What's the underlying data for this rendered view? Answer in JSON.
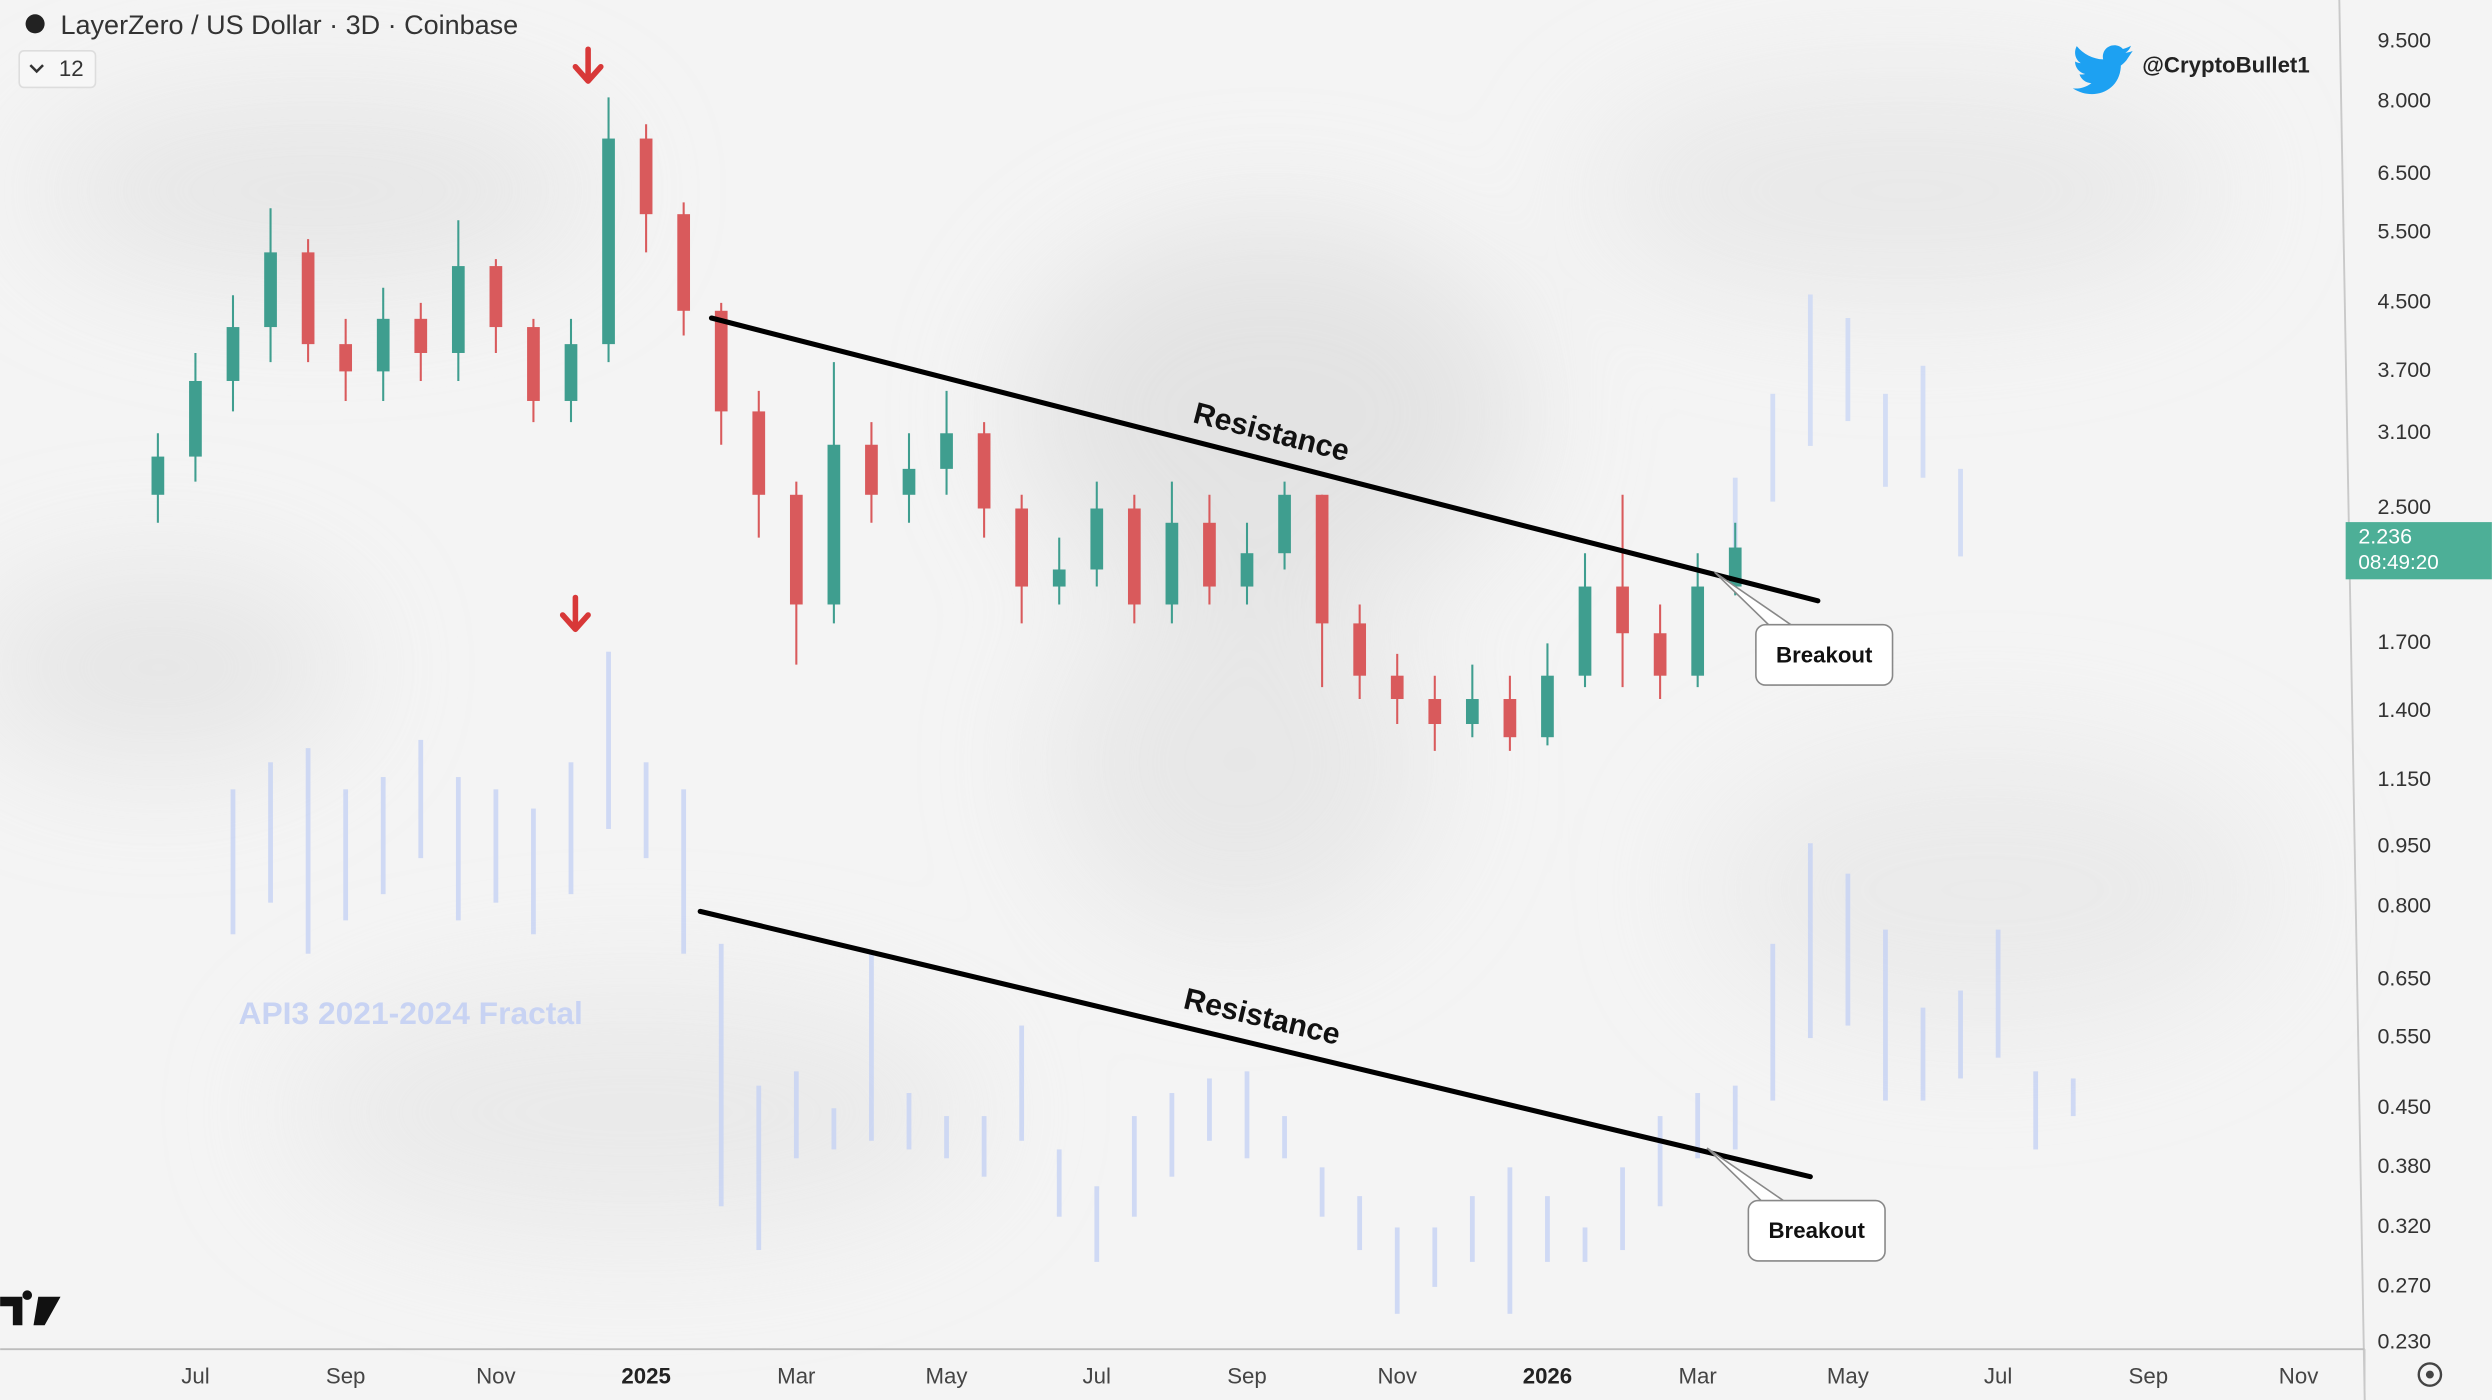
{
  "chart_data": {
    "type": "candlestick",
    "title": "LayerZero / US Dollar · 3D · Coinbase",
    "indicator_count": 12,
    "author": "@CryptoBullet1",
    "log_scale": true,
    "up_color": "#3f9e8f",
    "down_color": "#d95a5c",
    "x": [
      -6.5,
      -6.0,
      -5.5,
      -5.0,
      -4.5,
      -4.0,
      -3.5,
      -3.0,
      -2.5,
      -2.0,
      -1.5,
      -1.0,
      -0.5,
      0.0,
      0.5,
      1.0,
      1.5,
      2.0,
      2.5,
      3.0,
      3.5,
      4.0,
      4.5,
      5.0,
      5.5,
      6.0,
      6.5,
      7.0,
      7.5,
      8.0,
      8.5,
      9.0,
      9.5,
      10.0,
      10.5,
      11.0,
      11.5,
      12.0,
      12.5,
      13.0,
      13.5,
      14.0,
      14.5
    ],
    "open": [
      2.6,
      2.9,
      3.6,
      4.2,
      5.2,
      4.0,
      3.7,
      4.3,
      3.9,
      5.0,
      4.2,
      3.4,
      4.0,
      7.2,
      5.8,
      4.4,
      3.3,
      2.6,
      1.9,
      3.0,
      2.6,
      2.8,
      3.1,
      2.5,
      2.0,
      2.1,
      2.5,
      1.9,
      2.4,
      2.0,
      2.2,
      2.6,
      1.8,
      1.55,
      1.45,
      1.35,
      1.45,
      1.3,
      1.55,
      2.0,
      1.75,
      1.55,
      2.0
    ],
    "high": [
      3.1,
      3.9,
      4.6,
      5.9,
      5.4,
      4.3,
      4.7,
      4.5,
      5.7,
      5.1,
      4.3,
      4.3,
      8.1,
      7.5,
      6.0,
      4.5,
      3.5,
      2.7,
      3.8,
      3.2,
      3.1,
      3.5,
      3.2,
      2.6,
      2.3,
      2.7,
      2.6,
      2.7,
      2.6,
      2.4,
      2.7,
      2.6,
      1.9,
      1.65,
      1.55,
      1.6,
      1.55,
      1.7,
      2.2,
      2.6,
      1.9,
      2.2,
      2.4
    ],
    "low": [
      2.4,
      2.7,
      3.3,
      3.8,
      3.8,
      3.4,
      3.4,
      3.6,
      3.6,
      3.9,
      3.2,
      3.2,
      3.8,
      5.2,
      4.1,
      3.0,
      2.3,
      1.6,
      1.8,
      2.4,
      2.4,
      2.6,
      2.3,
      1.8,
      1.9,
      2.0,
      1.8,
      1.8,
      1.9,
      1.9,
      2.1,
      1.5,
      1.45,
      1.35,
      1.25,
      1.3,
      1.25,
      1.27,
      1.5,
      1.5,
      1.45,
      1.5,
      1.95
    ],
    "close": [
      2.9,
      3.6,
      4.2,
      5.2,
      4.0,
      3.7,
      4.3,
      3.9,
      5.0,
      4.2,
      3.4,
      4.0,
      7.2,
      5.8,
      4.4,
      3.3,
      2.6,
      1.9,
      3.0,
      2.6,
      2.8,
      3.1,
      2.5,
      2.0,
      2.1,
      2.5,
      1.9,
      2.4,
      2.0,
      2.2,
      2.6,
      1.8,
      1.55,
      1.45,
      1.35,
      1.45,
      1.3,
      1.55,
      2.0,
      1.75,
      1.55,
      2.0,
      2.236
    ],
    "fractal": {
      "label": "API3 2021-2024 Fractal",
      "color": "#c8d3f3",
      "x": [
        -5.5,
        -5.0,
        -4.5,
        -4.0,
        -3.5,
        -3.0,
        -2.5,
        -2.0,
        -1.5,
        -1.0,
        -0.5,
        0.0,
        0.5,
        1.0,
        1.5,
        2.0,
        2.5,
        3.0,
        3.5,
        4.0,
        4.5,
        5.0,
        5.5,
        6.0,
        6.5,
        7.0,
        7.5,
        8.0,
        8.5,
        9.0,
        9.5,
        10.0,
        10.5,
        11.0,
        11.5,
        12.0,
        12.5,
        13.0,
        13.5,
        14.0,
        14.5,
        15.0,
        15.5,
        16.0,
        16.5,
        17.0,
        17.5,
        18.0,
        18.5,
        19.0
      ],
      "high": [
        1.12,
        1.21,
        1.26,
        1.12,
        1.16,
        1.29,
        1.16,
        1.12,
        1.06,
        1.21,
        1.66,
        1.21,
        1.12,
        0.72,
        0.48,
        0.5,
        0.45,
        0.7,
        0.47,
        0.44,
        0.44,
        0.57,
        0.4,
        0.36,
        0.44,
        0.47,
        0.49,
        0.5,
        0.44,
        0.38,
        0.35,
        0.32,
        0.32,
        0.35,
        0.38,
        0.35,
        0.32,
        0.38,
        0.44,
        0.47,
        0.48,
        0.72,
        0.96,
        0.88,
        0.75,
        0.6,
        0.63,
        0.75,
        0.5,
        0.49
      ],
      "low": [
        0.74,
        0.81,
        0.7,
        0.77,
        0.83,
        0.92,
        0.77,
        0.81,
        0.74,
        0.83,
        1.0,
        0.92,
        0.7,
        0.34,
        0.3,
        0.39,
        0.4,
        0.41,
        0.4,
        0.39,
        0.37,
        0.41,
        0.33,
        0.29,
        0.33,
        0.37,
        0.41,
        0.39,
        0.39,
        0.33,
        0.3,
        0.25,
        0.27,
        0.29,
        0.25,
        0.29,
        0.29,
        0.3,
        0.34,
        0.39,
        0.4,
        0.46,
        0.55,
        0.57,
        0.46,
        0.46,
        0.49,
        0.52,
        0.4,
        0.44
      ]
    },
    "projection": {
      "color": "#cdd8f4",
      "x": [
        14.5,
        15.0,
        15.5,
        16.0,
        16.5,
        17.0,
        17.5
      ],
      "high": [
        2.73,
        3.47,
        4.61,
        4.31,
        3.47,
        3.76,
        2.8
      ],
      "low": [
        2.13,
        2.55,
        2.99,
        3.21,
        2.66,
        2.73,
        2.18
      ]
    },
    "trendlines": [
      {
        "label": "Resistance",
        "callout": "Breakout",
        "x": [
          0.87,
          15.6
        ],
        "values": [
          4.31,
          1.92
        ]
      },
      {
        "label": "Resistance",
        "callout": "Breakout",
        "x": [
          0.72,
          15.5
        ],
        "values": [
          0.79,
          0.37
        ]
      }
    ],
    "last_price": 2.236,
    "countdown": "08:49:20",
    "xlim": [
      -8.6,
      22.5
    ],
    "xticks": [
      {
        "value": -6,
        "label": "Jul"
      },
      {
        "value": -4,
        "label": "Sep"
      },
      {
        "value": -2,
        "label": "Nov"
      },
      {
        "value": 0,
        "label": "2025"
      },
      {
        "value": 2,
        "label": "Mar"
      },
      {
        "value": 4,
        "label": "May"
      },
      {
        "value": 6,
        "label": "Jul"
      },
      {
        "value": 8,
        "label": "Sep"
      },
      {
        "value": 10,
        "label": "Nov"
      },
      {
        "value": 12,
        "label": "2026"
      },
      {
        "value": 14,
        "label": "Mar"
      },
      {
        "value": 16,
        "label": "May"
      },
      {
        "value": 18,
        "label": "Jul"
      },
      {
        "value": 20,
        "label": "Sep"
      },
      {
        "value": 22,
        "label": "Nov"
      }
    ],
    "ylim": [
      0.227,
      10.7
    ],
    "yticks": [
      {
        "value": 9.5,
        "label": "9.500"
      },
      {
        "value": 8,
        "label": "8.000"
      },
      {
        "value": 6.5,
        "label": "6.500"
      },
      {
        "value": 5.5,
        "label": "5.500"
      },
      {
        "value": 4.5,
        "label": "4.500"
      },
      {
        "value": 3.7,
        "label": "3.700"
      },
      {
        "value": 3.1,
        "label": "3.100"
      },
      {
        "value": 2.5,
        "label": "2.500"
      },
      {
        "value": 1.7,
        "label": "1.700"
      },
      {
        "value": 1.4,
        "label": "1.400"
      },
      {
        "value": 1.15,
        "label": "1.150"
      },
      {
        "value": 0.95,
        "label": "0.950"
      },
      {
        "value": 0.8,
        "label": "0.800"
      },
      {
        "value": 0.65,
        "label": "0.650"
      },
      {
        "value": 0.55,
        "label": "0.550"
      },
      {
        "value": 0.45,
        "label": "0.450"
      },
      {
        "value": 0.38,
        "label": "0.380"
      },
      {
        "value": 0.32,
        "label": "0.320"
      },
      {
        "value": 0.27,
        "label": "0.270"
      },
      {
        "value": 0.23,
        "label": "0.230"
      }
    ]
  }
}
